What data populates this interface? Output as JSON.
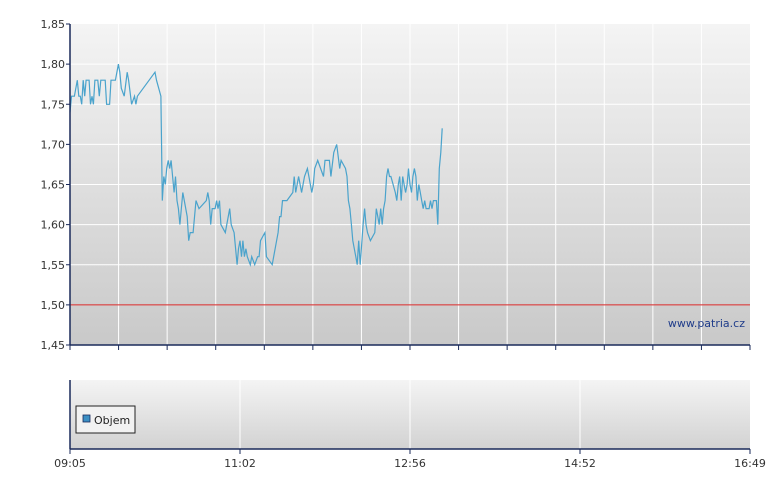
{
  "watermark": "www.patria.cz",
  "colors": {
    "price_line": "#4aa3cc",
    "reference_line": "#d42020",
    "axis": "#1a2a5a",
    "grid": "#ffffff",
    "legend_swatch": "#3b8fc4"
  },
  "volume_panel": {
    "legend_label": "Objem"
  },
  "chart_data": {
    "type": "line",
    "title": "",
    "xlabel": "",
    "ylabel": "",
    "ylim": [
      1.45,
      1.85
    ],
    "y_ticks": [
      "1,85",
      "1,80",
      "1,75",
      "1,70",
      "1,65",
      "1,60",
      "1,55",
      "1,50",
      "1,45"
    ],
    "x_tick_labels": [
      "09:05",
      "11:02",
      "12:56",
      "14:52",
      "16:49"
    ],
    "x_range": [
      "09:05",
      "16:49"
    ],
    "grid": true,
    "reference_line": 1.5,
    "series": [
      {
        "values": [
          [
            "09:05",
            1.74
          ],
          [
            "09:06",
            1.76
          ],
          [
            "09:08",
            1.76
          ],
          [
            "09:10",
            1.78
          ],
          [
            "09:11",
            1.76
          ],
          [
            "09:12",
            1.76
          ],
          [
            "09:13",
            1.75
          ],
          [
            "09:14",
            1.78
          ],
          [
            "09:15",
            1.76
          ],
          [
            "09:16",
            1.78
          ],
          [
            "09:18",
            1.78
          ],
          [
            "09:19",
            1.75
          ],
          [
            "09:20",
            1.76
          ],
          [
            "09:21",
            1.75
          ],
          [
            "09:22",
            1.78
          ],
          [
            "09:24",
            1.78
          ],
          [
            "09:25",
            1.76
          ],
          [
            "09:26",
            1.78
          ],
          [
            "09:29",
            1.78
          ],
          [
            "09:30",
            1.75
          ],
          [
            "09:32",
            1.75
          ],
          [
            "09:33",
            1.78
          ],
          [
            "09:36",
            1.78
          ],
          [
            "09:38",
            1.8
          ],
          [
            "09:39",
            1.79
          ],
          [
            "09:40",
            1.77
          ],
          [
            "09:42",
            1.76
          ],
          [
            "09:44",
            1.79
          ],
          [
            "09:45",
            1.78
          ],
          [
            "09:47",
            1.75
          ],
          [
            "09:49",
            1.76
          ],
          [
            "09:50",
            1.75
          ],
          [
            "09:51",
            1.76
          ],
          [
            "10:03",
            1.79
          ],
          [
            "10:04",
            1.78
          ],
          [
            "10:07",
            1.76
          ],
          [
            "10:08",
            1.63
          ],
          [
            "10:09",
            1.66
          ],
          [
            "10:10",
            1.65
          ],
          [
            "10:11",
            1.67
          ],
          [
            "10:12",
            1.68
          ],
          [
            "10:13",
            1.67
          ],
          [
            "10:14",
            1.68
          ],
          [
            "10:15",
            1.66
          ],
          [
            "10:16",
            1.64
          ],
          [
            "10:17",
            1.66
          ],
          [
            "10:18",
            1.63
          ],
          [
            "10:19",
            1.62
          ],
          [
            "10:20",
            1.6
          ],
          [
            "10:22",
            1.64
          ],
          [
            "10:23",
            1.63
          ],
          [
            "10:25",
            1.61
          ],
          [
            "10:26",
            1.58
          ],
          [
            "10:27",
            1.59
          ],
          [
            "10:29",
            1.59
          ],
          [
            "10:31",
            1.63
          ],
          [
            "10:33",
            1.62
          ],
          [
            "10:38",
            1.63
          ],
          [
            "10:39",
            1.64
          ],
          [
            "10:40",
            1.63
          ],
          [
            "10:41",
            1.6
          ],
          [
            "10:42",
            1.62
          ],
          [
            "10:44",
            1.62
          ],
          [
            "10:45",
            1.63
          ],
          [
            "10:46",
            1.62
          ],
          [
            "10:47",
            1.63
          ],
          [
            "10:48",
            1.6
          ],
          [
            "10:51",
            1.59
          ],
          [
            "10:54",
            1.62
          ],
          [
            "10:55",
            1.6
          ],
          [
            "10:57",
            1.59
          ],
          [
            "10:59",
            1.55
          ],
          [
            "11:00",
            1.57
          ],
          [
            "11:01",
            1.58
          ],
          [
            "11:02",
            1.56
          ],
          [
            "11:03",
            1.58
          ],
          [
            "11:04",
            1.56
          ],
          [
            "11:05",
            1.57
          ],
          [
            "11:06",
            1.56
          ],
          [
            "11:08",
            1.55
          ],
          [
            "11:09",
            1.56
          ],
          [
            "11:11",
            1.55
          ],
          [
            "11:13",
            1.56
          ],
          [
            "11:14",
            1.56
          ],
          [
            "11:15",
            1.58
          ],
          [
            "11:18",
            1.59
          ],
          [
            "11:19",
            1.56
          ],
          [
            "11:23",
            1.55
          ],
          [
            "11:26",
            1.58
          ],
          [
            "11:27",
            1.59
          ],
          [
            "11:28",
            1.61
          ],
          [
            "11:29",
            1.61
          ],
          [
            "11:30",
            1.63
          ],
          [
            "11:33",
            1.63
          ],
          [
            "11:37",
            1.64
          ],
          [
            "11:38",
            1.66
          ],
          [
            "11:39",
            1.64
          ],
          [
            "11:41",
            1.66
          ],
          [
            "11:43",
            1.64
          ],
          [
            "11:45",
            1.66
          ],
          [
            "11:47",
            1.67
          ],
          [
            "11:48",
            1.66
          ],
          [
            "11:50",
            1.64
          ],
          [
            "11:51",
            1.65
          ],
          [
            "11:52",
            1.67
          ],
          [
            "11:54",
            1.68
          ],
          [
            "11:58",
            1.66
          ],
          [
            "11:59",
            1.68
          ],
          [
            "12:02",
            1.68
          ],
          [
            "12:03",
            1.66
          ],
          [
            "12:05",
            1.69
          ],
          [
            "12:07",
            1.7
          ],
          [
            "12:09",
            1.67
          ],
          [
            "12:10",
            1.68
          ],
          [
            "12:13",
            1.67
          ],
          [
            "12:14",
            1.66
          ],
          [
            "12:15",
            1.63
          ],
          [
            "12:16",
            1.62
          ],
          [
            "12:17",
            1.6
          ],
          [
            "12:18",
            1.58
          ],
          [
            "12:19",
            1.57
          ],
          [
            "12:20",
            1.56
          ],
          [
            "12:21",
            1.55
          ],
          [
            "12:22",
            1.58
          ],
          [
            "12:23",
            1.55
          ],
          [
            "12:25",
            1.6
          ],
          [
            "12:26",
            1.62
          ],
          [
            "12:27",
            1.6
          ],
          [
            "12:28",
            1.59
          ],
          [
            "12:30",
            1.58
          ],
          [
            "12:33",
            1.59
          ],
          [
            "12:34",
            1.62
          ],
          [
            "12:35",
            1.61
          ],
          [
            "12:36",
            1.6
          ],
          [
            "12:37",
            1.62
          ],
          [
            "12:38",
            1.6
          ],
          [
            "12:39",
            1.62
          ],
          [
            "12:40",
            1.63
          ],
          [
            "12:41",
            1.66
          ],
          [
            "12:42",
            1.67
          ],
          [
            "12:43",
            1.66
          ],
          [
            "12:44",
            1.66
          ],
          [
            "12:47",
            1.64
          ],
          [
            "12:48",
            1.63
          ],
          [
            "12:49",
            1.65
          ],
          [
            "12:50",
            1.66
          ],
          [
            "12:51",
            1.63
          ],
          [
            "12:52",
            1.66
          ],
          [
            "12:53",
            1.65
          ],
          [
            "12:54",
            1.64
          ],
          [
            "12:55",
            1.65
          ],
          [
            "12:56",
            1.67
          ],
          [
            "12:57",
            1.65
          ],
          [
            "12:58",
            1.64
          ],
          [
            "12:59",
            1.66
          ],
          [
            "13:00",
            1.67
          ],
          [
            "13:01",
            1.66
          ],
          [
            "13:02",
            1.63
          ],
          [
            "13:03",
            1.65
          ],
          [
            "13:04",
            1.64
          ],
          [
            "13:05",
            1.63
          ],
          [
            "13:06",
            1.62
          ],
          [
            "13:07",
            1.63
          ],
          [
            "13:08",
            1.62
          ],
          [
            "13:10",
            1.62
          ],
          [
            "13:11",
            1.63
          ],
          [
            "13:12",
            1.62
          ],
          [
            "13:13",
            1.63
          ],
          [
            "13:15",
            1.63
          ],
          [
            "13:16",
            1.6
          ],
          [
            "13:17",
            1.67
          ],
          [
            "13:18",
            1.69
          ],
          [
            "13:19",
            1.72
          ]
        ]
      }
    ]
  }
}
